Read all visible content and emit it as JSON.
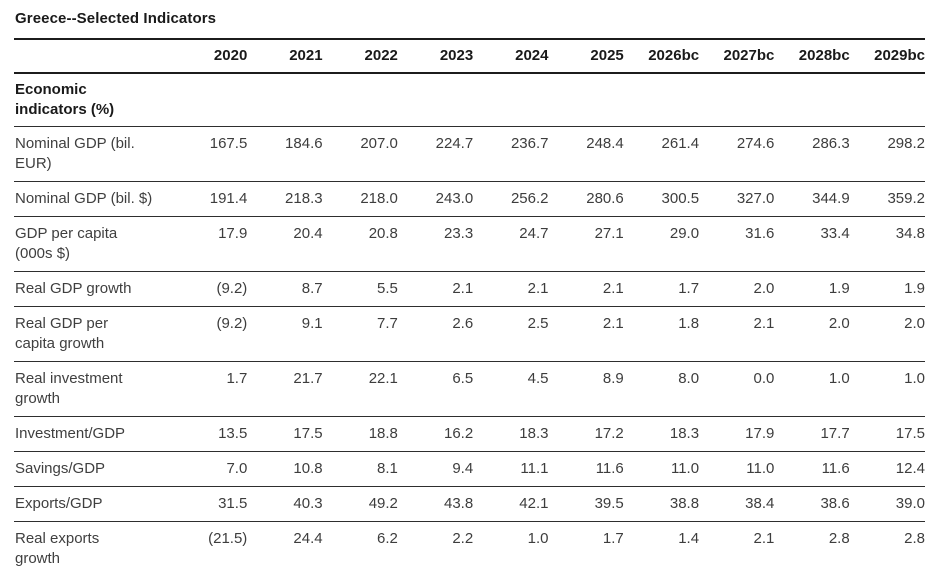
{
  "title": "Greece--Selected Indicators",
  "table": {
    "year_headers": [
      "2020",
      "2021",
      "2022",
      "2023",
      "2024",
      "2025",
      "2026bc",
      "2027bc",
      "2028bc",
      "2029bc"
    ],
    "section_header": "Economic\nindicators (%)",
    "rows": [
      {
        "label": "Nominal GDP (bil.\nEUR)",
        "values": [
          "167.5",
          "184.6",
          "207.0",
          "224.7",
          "236.7",
          "248.4",
          "261.4",
          "274.6",
          "286.3",
          "298.2"
        ]
      },
      {
        "label": "Nominal GDP (bil. $)",
        "values": [
          "191.4",
          "218.3",
          "218.0",
          "243.0",
          "256.2",
          "280.6",
          "300.5",
          "327.0",
          "344.9",
          "359.2"
        ]
      },
      {
        "label": "GDP per capita\n(000s $)",
        "values": [
          "17.9",
          "20.4",
          "20.8",
          "23.3",
          "24.7",
          "27.1",
          "29.0",
          "31.6",
          "33.4",
          "34.8"
        ]
      },
      {
        "label": "Real GDP growth",
        "values": [
          "(9.2)",
          "8.7",
          "5.5",
          "2.1",
          "2.1",
          "2.1",
          "1.7",
          "2.0",
          "1.9",
          "1.9"
        ]
      },
      {
        "label": "Real GDP per\ncapita growth",
        "values": [
          "(9.2)",
          "9.1",
          "7.7",
          "2.6",
          "2.5",
          "2.1",
          "1.8",
          "2.1",
          "2.0",
          "2.0"
        ]
      },
      {
        "label": "Real investment\ngrowth",
        "values": [
          "1.7",
          "21.7",
          "22.1",
          "6.5",
          "4.5",
          "8.9",
          "8.0",
          "0.0",
          "1.0",
          "1.0"
        ]
      },
      {
        "label": "Investment/GDP",
        "values": [
          "13.5",
          "17.5",
          "18.8",
          "16.2",
          "18.3",
          "17.2",
          "18.3",
          "17.9",
          "17.7",
          "17.5"
        ]
      },
      {
        "label": "Savings/GDP",
        "values": [
          "7.0",
          "10.8",
          "8.1",
          "9.4",
          "11.1",
          "11.6",
          "11.0",
          "11.0",
          "11.6",
          "12.4"
        ]
      },
      {
        "label": "Exports/GDP",
        "values": [
          "31.5",
          "40.3",
          "49.2",
          "43.8",
          "42.1",
          "39.5",
          "38.8",
          "38.4",
          "38.6",
          "39.0"
        ]
      },
      {
        "label": "Real exports\ngrowth",
        "values": [
          "(21.5)",
          "24.4",
          "6.2",
          "2.2",
          "1.0",
          "1.7",
          "1.4",
          "2.1",
          "2.8",
          "2.8"
        ]
      }
    ]
  },
  "colors": {
    "background": "#ffffff",
    "text_heading": "#1a1a1a",
    "text_body": "#3f3f3f",
    "rule_heavy": "#1c1c1c",
    "rule_light": "#2e2e2e"
  }
}
